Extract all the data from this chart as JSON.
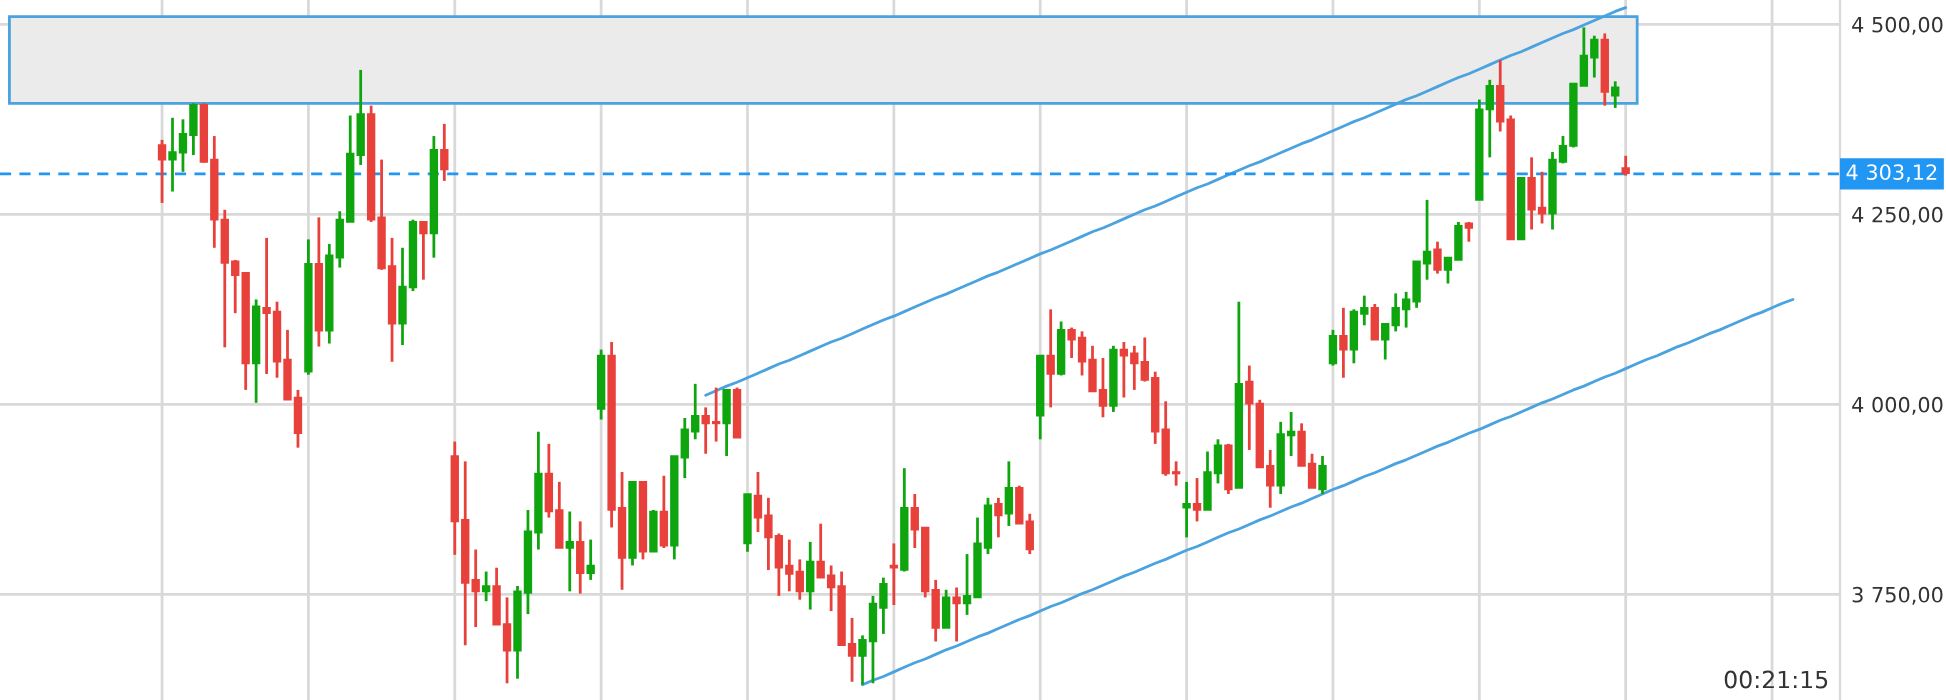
{
  "chart_data": {
    "type": "candlestick",
    "categories": [
      null,
      null,
      null,
      null,
      null,
      null,
      null,
      null,
      null,
      null,
      null,
      null,
      null,
      null,
      null,
      null,
      null,
      null,
      null,
      null,
      null,
      null,
      null,
      null,
      null,
      null,
      null,
      null,
      null,
      null,
      null,
      null,
      null,
      null,
      null,
      null,
      null,
      null,
      null,
      null,
      null,
      null,
      null,
      null,
      null,
      null,
      null,
      null,
      null,
      null,
      null,
      null,
      null,
      null,
      null,
      null,
      null,
      null,
      null,
      null,
      null,
      null,
      null,
      null,
      null,
      null,
      null,
      null,
      null,
      null,
      null,
      null,
      null,
      null,
      null,
      null,
      null,
      null,
      null,
      null,
      null,
      null,
      null,
      null,
      null,
      null,
      null,
      null,
      null,
      null,
      null,
      null,
      null,
      null,
      null,
      null,
      null,
      null,
      null,
      null,
      null,
      null,
      null,
      null,
      null,
      null,
      null,
      null,
      null,
      null,
      null,
      null,
      null,
      null,
      null,
      null,
      null,
      null,
      null,
      null,
      null,
      null,
      null,
      null,
      null,
      null,
      null,
      null,
      null,
      null,
      null,
      null,
      null,
      null,
      null,
      null,
      null,
      null,
      null,
      null,
      null,
      null,
      null,
      null,
      null,
      null,
      null,
      null,
      null,
      null,
      null,
      null,
      null,
      null,
      null,
      null,
      null,
      null,
      null,
      null,
      null,
      null,
      null,
      null,
      null,
      null,
      null,
      null,
      null,
      null,
      null,
      null,
      null,
      null,
      null,
      null
    ],
    "ohlc": [
      null,
      null,
      null,
      null,
      null,
      null,
      null,
      null,
      null,
      null,
      null,
      null,
      null,
      null,
      null,
      [
        4341,
        4348,
        4265,
        4322
      ],
      [
        4322,
        4377,
        4280,
        4332
      ],
      [
        4331,
        4375,
        4306,
        4356
      ],
      [
        4354,
        4396,
        4328,
        4394
      ],
      [
        4394,
        4396,
        4318,
        4319
      ],
      [
        4322,
        4353,
        4206,
        4243
      ],
      [
        4243,
        4256,
        4075,
        4186
      ],
      [
        4188,
        4190,
        4120,
        4170
      ],
      [
        4173,
        4173,
        4019,
        4054
      ],
      [
        4054,
        4138,
        4002,
        4129
      ],
      [
        4127,
        4219,
        4040,
        4120
      ],
      [
        4122,
        4135,
        4035,
        4056
      ],
      [
        4059,
        4098,
        4006,
        4006
      ],
      [
        4009,
        4019,
        3943,
        3962
      ],
      [
        4043,
        4217,
        4039,
        4185
      ],
      [
        4185,
        4246,
        4076,
        4097
      ],
      [
        4097,
        4211,
        4080,
        4196
      ],
      [
        4193,
        4254,
        4180,
        4243
      ],
      [
        4240,
        4380,
        4240,
        4330
      ],
      [
        4328,
        4440,
        4315,
        4382
      ],
      [
        4382,
        4393,
        4240,
        4243
      ],
      [
        4246,
        4322,
        4177,
        4179
      ],
      [
        4182,
        4219,
        4056,
        4106
      ],
      [
        4106,
        4206,
        4078,
        4155
      ],
      [
        4154,
        4243,
        4149,
        4240
      ],
      [
        4240,
        4240,
        4164,
        4225
      ],
      [
        4225,
        4353,
        4193,
        4335
      ],
      [
        4335,
        4369,
        4294,
        4309
      ],
      [
        3932,
        3951,
        3802,
        3846
      ],
      [
        3848,
        3925,
        3683,
        3765
      ],
      [
        3769,
        3809,
        3707,
        3754
      ],
      [
        3754,
        3780,
        3741,
        3761
      ],
      [
        3761,
        3785,
        3710,
        3710
      ],
      [
        3711,
        3746,
        3633,
        3676
      ],
      [
        3676,
        3761,
        3639,
        3754
      ],
      [
        3752,
        3861,
        3724,
        3833
      ],
      [
        3831,
        3964,
        3809,
        3909
      ],
      [
        3909,
        3948,
        3851,
        3859
      ],
      [
        3861,
        3898,
        3811,
        3811
      ],
      [
        3811,
        3859,
        3754,
        3819
      ],
      [
        3819,
        3846,
        3751,
        3778
      ],
      [
        3778,
        3822,
        3769,
        3788
      ],
      [
        3994,
        4072,
        3980,
        4064
      ],
      [
        4064,
        4082,
        3838,
        3861
      ],
      [
        3864,
        3911,
        3756,
        3798
      ],
      [
        3798,
        3898,
        3788,
        3898
      ],
      [
        3898,
        3898,
        3796,
        3806
      ],
      [
        3806,
        3861,
        3806,
        3859
      ],
      [
        3859,
        3906,
        3811,
        3814
      ],
      [
        3814,
        3932,
        3796,
        3932
      ],
      [
        3930,
        3982,
        3903,
        3967
      ],
      [
        3964,
        4027,
        3954,
        3985
      ],
      [
        3985,
        3996,
        3935,
        3975
      ],
      [
        3977,
        4022,
        3951,
        3975
      ],
      [
        3975,
        4019,
        3932,
        4019
      ],
      [
        4019,
        4022,
        3956,
        3956
      ],
      [
        3817,
        3882,
        3806,
        3882
      ],
      [
        3880,
        3911,
        3832,
        3851
      ],
      [
        3854,
        3877,
        3782,
        3825
      ],
      [
        3827,
        3830,
        3748,
        3785
      ],
      [
        3788,
        3822,
        3754,
        3777
      ],
      [
        3780,
        3796,
        3743,
        3754
      ],
      [
        3754,
        3819,
        3730,
        3793
      ],
      [
        3793,
        3843,
        3772,
        3772
      ],
      [
        3775,
        3788,
        3728,
        3759
      ],
      [
        3761,
        3780,
        3683,
        3683
      ],
      [
        3685,
        3719,
        3635,
        3669
      ],
      [
        3669,
        3696,
        3631,
        3690
      ],
      [
        3688,
        3748,
        3633,
        3738
      ],
      [
        3732,
        3772,
        3698,
        3764
      ],
      [
        3788,
        3817,
        3736,
        3785
      ],
      [
        3782,
        3916,
        3780,
        3864
      ],
      [
        3864,
        3882,
        3811,
        3835
      ],
      [
        3838,
        3838,
        3746,
        3754
      ],
      [
        3756,
        3769,
        3688,
        3706
      ],
      [
        3706,
        3756,
        3706,
        3746
      ],
      [
        3746,
        3759,
        3688,
        3738
      ],
      [
        3738,
        3803,
        3723,
        3748
      ],
      [
        3746,
        3851,
        3746,
        3817
      ],
      [
        3811,
        3877,
        3803,
        3867
      ],
      [
        3869,
        3877,
        3825,
        3854
      ],
      [
        3856,
        3925,
        3840,
        3890
      ],
      [
        3890,
        3893,
        3843,
        3843
      ],
      [
        3846,
        3856,
        3803,
        3809
      ],
      [
        3985,
        4064,
        3954,
        4064
      ],
      [
        4064,
        4125,
        3996,
        4040
      ],
      [
        4040,
        4109,
        4038,
        4098
      ],
      [
        4098,
        4101,
        4061,
        4085
      ],
      [
        4088,
        4096,
        4038,
        4056
      ],
      [
        4059,
        4077,
        4017,
        4017
      ],
      [
        4019,
        4061,
        3983,
        3998
      ],
      [
        3998,
        4077,
        3990,
        4072
      ],
      [
        4072,
        4082,
        4009,
        4064
      ],
      [
        4067,
        4077,
        4019,
        4054
      ],
      [
        4056,
        4088,
        4030,
        4032
      ],
      [
        4035,
        4043,
        3948,
        3964
      ],
      [
        3967,
        4004,
        3906,
        3909
      ],
      [
        3911,
        3925,
        3893,
        3909
      ],
      [
        3864,
        3898,
        3825,
        3869
      ],
      [
        3869,
        3903,
        3846,
        3861
      ],
      [
        3861,
        3938,
        3861,
        3911
      ],
      [
        3909,
        3954,
        3896,
        3946
      ],
      [
        3946,
        3948,
        3882,
        3888
      ],
      [
        3890,
        4135,
        3890,
        4027
      ],
      [
        4030,
        4051,
        3940,
        4001
      ],
      [
        4001,
        4006,
        3917,
        3917
      ],
      [
        3919,
        3940,
        3864,
        3893
      ],
      [
        3893,
        3977,
        3882,
        3961
      ],
      [
        3959,
        3990,
        3932,
        3964
      ],
      [
        3964,
        3975,
        3919,
        3919
      ],
      [
        3922,
        3935,
        3890,
        3890
      ],
      [
        3888,
        3932,
        3882,
        3919
      ],
      [
        4054,
        4098,
        4051,
        4090
      ],
      [
        4090,
        4127,
        4035,
        4072
      ],
      [
        4072,
        4125,
        4054,
        4122
      ],
      [
        4119,
        4143,
        4104,
        4127
      ],
      [
        4127,
        4132,
        4085,
        4085
      ],
      [
        4085,
        4106,
        4059,
        4106
      ],
      [
        4104,
        4146,
        4096,
        4127
      ],
      [
        4125,
        4148,
        4101,
        4138
      ],
      [
        4135,
        4188,
        4127,
        4188
      ],
      [
        4185,
        4269,
        4164,
        4201
      ],
      [
        4204,
        4214,
        4172,
        4177
      ],
      [
        4177,
        4193,
        4159,
        4193
      ],
      [
        4190,
        4240,
        4190,
        4235
      ],
      [
        4238,
        4240,
        4214,
        4232
      ],
      [
        4269,
        4401,
        4269,
        4388
      ],
      [
        4388,
        4427,
        4325,
        4419
      ],
      [
        4419,
        4453,
        4359,
        4372
      ],
      [
        4375,
        4380,
        4217,
        4217
      ],
      [
        4217,
        4298,
        4217,
        4298
      ],
      [
        4298,
        4325,
        4230,
        4256
      ],
      [
        4259,
        4306,
        4238,
        4251
      ],
      [
        4251,
        4332,
        4230,
        4322
      ],
      [
        4319,
        4353,
        4317,
        4340
      ],
      [
        4340,
        4422,
        4338,
        4422
      ],
      [
        4419,
        4496,
        4419,
        4459
      ],
      [
        4456,
        4485,
        4430,
        4480
      ],
      [
        4480,
        4488,
        4393,
        4411
      ],
      [
        4406,
        4425,
        4390,
        4417
      ],
      [
        4311,
        4327,
        4301,
        4304
      ],
      null,
      null,
      null,
      null,
      null,
      null,
      null,
      null,
      null,
      null,
      null,
      null,
      null,
      null,
      null,
      null,
      null,
      null,
      null,
      null
    ],
    "series": [
      {
        "type": "line",
        "color": "#4aa3df",
        "values": [
          null,
          null,
          null,
          null,
          null,
          null,
          null,
          null,
          null,
          null,
          null,
          null,
          null,
          null,
          null,
          null,
          null,
          null,
          null,
          null,
          null,
          null,
          null,
          null,
          null,
          null,
          null,
          null,
          null,
          null,
          null,
          null,
          null,
          null,
          null,
          null,
          null,
          null,
          null,
          null,
          null,
          null,
          null,
          null,
          null,
          null,
          null,
          null,
          null,
          null,
          null,
          null,
          null,
          null,
          null,
          null,
          null,
          null,
          null,
          null,
          null,
          null,
          null,
          null,
          null,
          null,
          null,
          4012,
          4018,
          4024,
          4029,
          4035,
          4041,
          4047,
          4053,
          4058,
          4064,
          4070,
          4076,
          4082,
          4087,
          4093,
          4099,
          4105,
          4111,
          4116,
          4122,
          4128,
          4134,
          4140,
          4145,
          4151,
          4157,
          4163,
          4169,
          4174,
          4180,
          4186,
          4192,
          4198,
          4203,
          4209,
          4215,
          4221,
          4227,
          4232,
          4238,
          4244,
          4250,
          4256,
          4261,
          4267,
          4273,
          4279,
          4285,
          4290,
          4296,
          4302,
          4308,
          4314,
          4319,
          4325,
          4331,
          4337,
          4343,
          4348,
          4354,
          4360,
          4366,
          4372,
          4377,
          4383,
          4389,
          4395,
          4401,
          4406,
          4412,
          4418,
          4424,
          4430,
          4435,
          4441,
          4447,
          4453,
          4459,
          4464,
          4470,
          4476,
          4482,
          4488,
          4493,
          4499,
          4505,
          4511,
          4517,
          4522,
          null,
          null,
          null,
          null,
          null,
          null,
          null,
          null,
          null,
          null,
          null,
          null,
          null,
          null,
          null,
          null,
          null,
          null,
          null,
          null
        ]
      },
      {
        "type": "line",
        "color": "#4aa3df",
        "values": [
          null,
          null,
          null,
          null,
          null,
          null,
          null,
          null,
          null,
          null,
          null,
          null,
          null,
          null,
          null,
          null,
          null,
          null,
          null,
          null,
          null,
          null,
          null,
          null,
          null,
          null,
          null,
          null,
          null,
          null,
          null,
          null,
          null,
          null,
          null,
          null,
          null,
          null,
          null,
          null,
          null,
          null,
          null,
          null,
          null,
          null,
          null,
          null,
          null,
          null,
          null,
          null,
          null,
          null,
          null,
          null,
          null,
          null,
          null,
          null,
          null,
          null,
          null,
          null,
          null,
          null,
          null,
          null,
          null,
          null,
          null,
          null,
          null,
          null,
          null,
          null,
          null,
          null,
          null,
          null,
          null,
          null,
          3631,
          3637,
          3642,
          3648,
          3654,
          3660,
          3665,
          3671,
          3677,
          3682,
          3688,
          3694,
          3699,
          3705,
          3711,
          3717,
          3722,
          3728,
          3734,
          3739,
          3745,
          3751,
          3756,
          3762,
          3768,
          3774,
          3779,
          3785,
          3791,
          3796,
          3802,
          3808,
          3813,
          3819,
          3825,
          3831,
          3836,
          3842,
          3848,
          3853,
          3859,
          3865,
          3870,
          3876,
          3882,
          3888,
          3893,
          3899,
          3905,
          3910,
          3916,
          3922,
          3927,
          3933,
          3939,
          3945,
          3950,
          3956,
          3962,
          3967,
          3973,
          3979,
          3984,
          3990,
          3996,
          4002,
          4007,
          4013,
          4019,
          4024,
          4030,
          4036,
          4041,
          4047,
          4053,
          4059,
          4064,
          4070,
          4076,
          4081,
          4087,
          4093,
          4098,
          4104,
          4110,
          4116,
          4121,
          4127,
          4133,
          4138,
          null,
          null,
          null,
          null
        ]
      }
    ],
    "ylim": [
      3611,
      4532
    ],
    "yticks": [
      {
        "value": 3750,
        "label": "3 750,00"
      },
      {
        "value": 4000,
        "label": "4 000,00"
      },
      {
        "value": 4250,
        "label": "4 250,00"
      },
      {
        "value": 4500,
        "label": "4 500,00"
      }
    ],
    "ref_lines": [
      {
        "axis": "y",
        "value": 4303.12,
        "label": "4 303,12",
        "color": "#2196f3",
        "line_style": "dashed"
      }
    ],
    "bands": [
      {
        "axis": "y",
        "from": 4396,
        "to": 4510,
        "color": "#ebebeb"
      }
    ],
    "annotations": [
      "00:21:15"
    ],
    "grid": true
  }
}
